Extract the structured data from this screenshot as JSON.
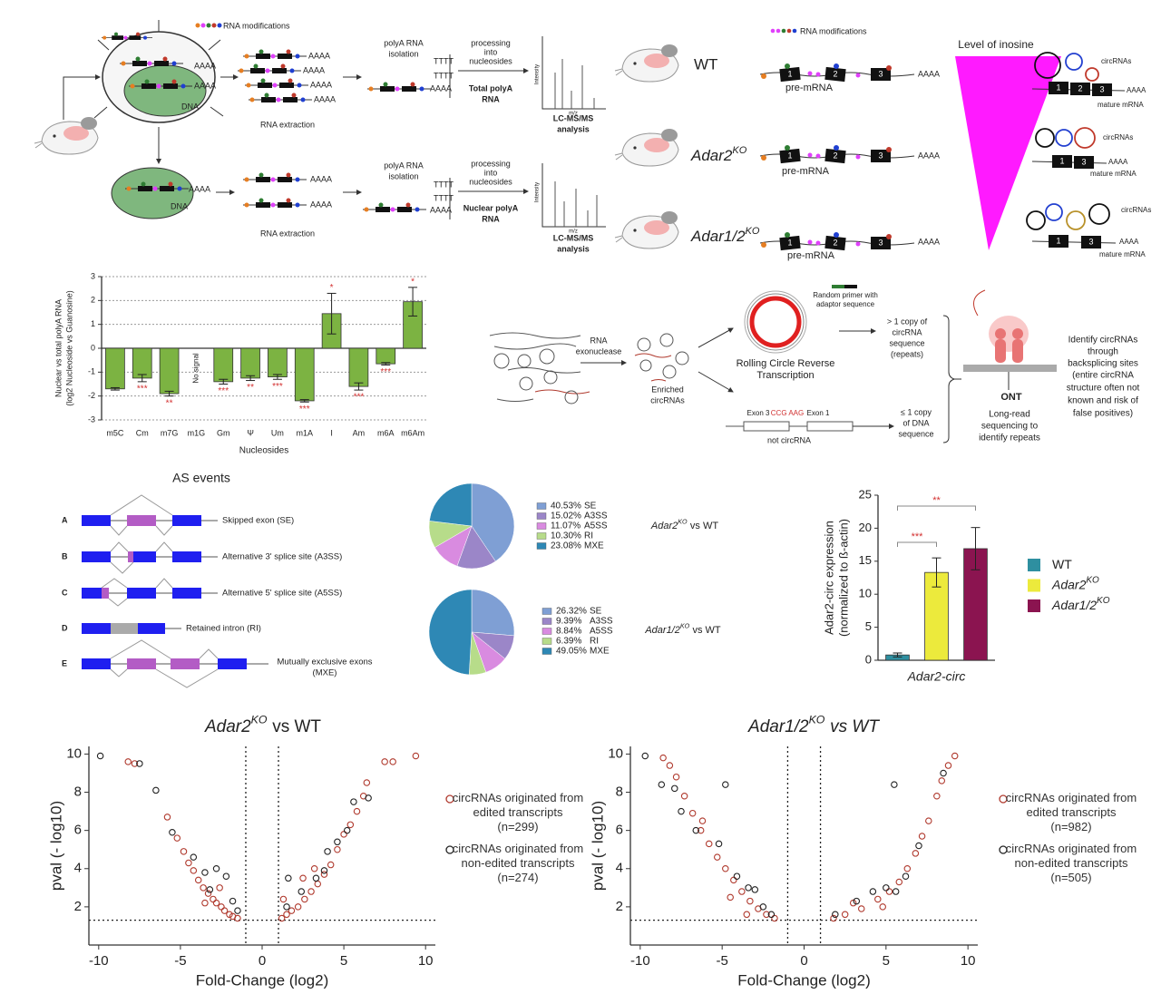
{
  "chart_data": [
    {
      "type": "bar",
      "categories": [
        "m5C",
        "Cm",
        "m7G",
        "m1G",
        "Gm",
        "Ψ",
        "Um",
        "m1A",
        "I",
        "Am",
        "m6A",
        "m6Am"
      ],
      "values": [
        -1.7,
        -1.25,
        -1.9,
        null,
        -1.4,
        -1.25,
        -1.2,
        -2.2,
        1.45,
        -1.6,
        -0.65,
        1.95
      ],
      "errors": [
        0.05,
        0.15,
        0.1,
        null,
        0.1,
        0.1,
        0.1,
        0.05,
        0.85,
        0.15,
        0.05,
        0.6
      ],
      "annotations": [
        null,
        "***",
        "**",
        "No signal",
        "***",
        "**",
        "***",
        "***",
        "*",
        "***",
        "***",
        "*"
      ],
      "annotation_color": "#d32f2f",
      "color": "#7cb342",
      "ylim": [
        -3,
        3
      ],
      "yticks": [
        -3,
        -2,
        -1,
        0,
        1,
        2,
        3
      ],
      "grid": true,
      "xlabel": "Nucleosides",
      "ylabel": [
        "Nuclear vs total polyA RNA",
        "(log2 Nucleoside vs Guanosine)"
      ]
    },
    {
      "type": "pie",
      "title": [
        "Adar2",
        "KO",
        "vs WT"
      ],
      "categories": [
        "SE",
        "A3SS",
        "A5SS",
        "RI",
        "MXE"
      ],
      "values": [
        40.53,
        15.02,
        11.07,
        10.3,
        23.08
      ],
      "value_labels": [
        "40.53%",
        "15.02%",
        "11.07%",
        "10.30%",
        "23.08%"
      ],
      "colors": [
        "#7f9fd4",
        "#9b86c8",
        "#d98be0",
        "#b7dc8a",
        "#2e88b5"
      ]
    },
    {
      "type": "pie",
      "title": [
        "Adar1/2",
        "KO",
        "vs WT"
      ],
      "categories": [
        "SE",
        "A3SS",
        "A5SS",
        "RI",
        "MXE"
      ],
      "values": [
        26.32,
        9.39,
        8.84,
        6.39,
        49.05
      ],
      "value_labels": [
        "26.32%",
        "9.39%",
        "8.84%",
        "6.39%",
        "49.05%"
      ],
      "colors": [
        "#7f9fd4",
        "#9b86c8",
        "#d98be0",
        "#b7dc8a",
        "#2e88b5"
      ]
    },
    {
      "type": "bar",
      "categories": [
        "WT",
        "Adar2",
        "Adar1/2"
      ],
      "category_superscripts": [
        null,
        "KO",
        "KO"
      ],
      "values": [
        0.8,
        13.3,
        16.9
      ],
      "errors": [
        0.3,
        2.2,
        3.2
      ],
      "colors": [
        "#2e8fa0",
        "#ecea3c",
        "#8b1450"
      ],
      "significance": [
        "***",
        "**"
      ],
      "annotation_color": "#d32f2f",
      "ylim": [
        0,
        25
      ],
      "yticks": [
        0,
        5,
        10,
        15,
        20,
        25
      ],
      "grid": false,
      "legend": "right",
      "xlabel": "Adar2-circ",
      "ylabel": [
        "Adar2-circ expression",
        "(normalized to ß-actin)"
      ]
    },
    {
      "type": "scatter",
      "title": [
        "Adar2",
        "KO",
        "vs WT"
      ],
      "xlabel": "Fold-Change (log2)",
      "ylabel": "pval (- log10)",
      "xlim": [
        -10.6,
        10.6
      ],
      "ylim": [
        0,
        10.4
      ],
      "xticks": [
        -10,
        -5,
        0,
        5,
        10
      ],
      "yticks": [
        2,
        4,
        6,
        8,
        10
      ],
      "thresholds": {
        "x": [
          -1,
          1
        ],
        "y": 1.3
      },
      "series": [
        {
          "name": "circRNAs originated from edited transcripts (n=299)",
          "color": "#b03a2e",
          "x": [
            -8.2,
            -7.8,
            -5.8,
            -5.2,
            -4.8,
            -4.5,
            -4.2,
            -3.9,
            -3.6,
            -3.3,
            -3.0,
            -2.8,
            -2.5,
            -2.3,
            -2.0,
            -1.8,
            -1.5,
            -2.6,
            -3.5,
            1.2,
            1.5,
            1.8,
            2.2,
            2.6,
            3.0,
            3.4,
            3.8,
            4.2,
            4.6,
            5.0,
            5.4,
            5.8,
            6.2,
            6.4,
            7.5,
            8.0,
            9.4,
            2.5,
            3.2,
            1.3
          ],
          "values": [
            9.6,
            9.5,
            6.7,
            5.6,
            4.9,
            4.3,
            3.9,
            3.4,
            3.0,
            2.7,
            2.4,
            2.2,
            2.0,
            1.8,
            1.6,
            1.5,
            1.4,
            3.0,
            2.2,
            1.4,
            1.6,
            1.8,
            2.0,
            2.4,
            2.8,
            3.2,
            3.7,
            4.2,
            5.0,
            5.8,
            6.3,
            7.0,
            7.8,
            8.5,
            9.6,
            9.6,
            9.9,
            3.5,
            4.0,
            2.4
          ]
        },
        {
          "name": "circRNAs originated from non-edited transcripts (n=274)",
          "color": "#222222",
          "x": [
            -9.9,
            -7.5,
            -6.5,
            -5.5,
            -4.2,
            -3.5,
            -2.8,
            -2.2,
            -1.8,
            -1.5,
            -3.2,
            1.5,
            2.4,
            3.3,
            3.8,
            4.6,
            5.2,
            5.6,
            6.5,
            4.0,
            1.6
          ],
          "values": [
            9.9,
            9.5,
            8.1,
            5.9,
            4.6,
            3.8,
            4.0,
            3.6,
            2.3,
            1.8,
            2.9,
            2.0,
            2.8,
            3.5,
            3.9,
            5.4,
            6.0,
            7.5,
            7.7,
            4.9,
            3.5
          ]
        }
      ]
    },
    {
      "type": "scatter",
      "title": [
        "Adar1/2",
        "KO",
        "vs WT"
      ],
      "xlabel": "Fold-Change (log2)",
      "ylabel": "pval (- log10)",
      "xlim": [
        -10.6,
        10.6
      ],
      "ylim": [
        0,
        10.4
      ],
      "xticks": [
        -10,
        -5,
        0,
        5,
        10
      ],
      "yticks": [
        2,
        4,
        6,
        8,
        10
      ],
      "thresholds": {
        "x": [
          -1,
          1
        ],
        "y": 1.3
      },
      "series": [
        {
          "name": "circRNAs originated from edited transcripts (n=982)",
          "color": "#b03a2e",
          "x": [
            -8.6,
            -8.2,
            -7.8,
            -7.3,
            -6.8,
            -6.3,
            -5.8,
            -5.3,
            -4.8,
            -4.3,
            -3.8,
            -3.3,
            -2.8,
            -2.3,
            -1.8,
            -4.5,
            -3.5,
            -6.2,
            1.8,
            2.5,
            3.5,
            4.5,
            5.2,
            5.8,
            6.3,
            6.8,
            7.2,
            7.6,
            8.1,
            8.4,
            8.8,
            9.2,
            4.8,
            3.0
          ],
          "values": [
            9.8,
            9.4,
            8.8,
            7.8,
            6.9,
            6.0,
            5.3,
            4.6,
            4.0,
            3.4,
            2.8,
            2.3,
            1.9,
            1.6,
            1.4,
            2.5,
            1.6,
            6.5,
            1.4,
            1.6,
            1.9,
            2.4,
            2.8,
            3.3,
            4.0,
            4.8,
            5.7,
            6.5,
            7.8,
            8.6,
            9.4,
            9.9,
            2.0,
            2.2
          ]
        },
        {
          "name": "circRNAs originated from non-edited transcripts (n=505)",
          "color": "#222222",
          "x": [
            -9.7,
            -8.7,
            -7.9,
            -7.5,
            -6.6,
            -5.2,
            -4.8,
            -4.1,
            -3.4,
            -3.0,
            -2.5,
            -2.0,
            1.9,
            3.2,
            4.2,
            5.0,
            5.5,
            6.2,
            7.0,
            8.5,
            5.6
          ],
          "values": [
            9.9,
            8.4,
            8.2,
            7.0,
            6.0,
            5.3,
            8.4,
            3.6,
            3.0,
            2.9,
            2.0,
            1.6,
            1.6,
            2.3,
            2.8,
            3.0,
            8.4,
            3.6,
            5.2,
            9.0,
            2.8
          ]
        }
      ]
    }
  ],
  "diagram_top_left": {
    "rna_modifications": "RNA modifications",
    "polyA_tail": "AAAA",
    "dna": "DNA",
    "rna_extraction": "RNA extraction",
    "polyA_isolation": [
      "polyA RNA",
      "isolation"
    ],
    "oligo_dT": "TTTT",
    "processing": [
      "processing",
      "into",
      "nucleosides"
    ],
    "total_polyA": [
      "Total polyA",
      "RNA"
    ],
    "nuclear_polyA": [
      "Nuclear polyA",
      "RNA"
    ],
    "intensity": "Intensity",
    "mz": "m/z",
    "lcms": [
      "LC-MS/MS",
      "analysis"
    ]
  },
  "diagram_top_right": {
    "rna_modifications": "RNA modifications",
    "genotypes": [
      [
        "WT"
      ],
      [
        "Adar2",
        "KO"
      ],
      [
        "Adar1/2",
        "KO"
      ]
    ],
    "pre_mrna": "pre-mRNA",
    "exons": [
      "1",
      "2",
      "3"
    ],
    "polyA_tail": "AAAA",
    "inosine": "Level of inosine",
    "circrnas": "circRNAs",
    "mature_mrna": "mature mRNA"
  },
  "diagram_circ": {
    "exonuclease": [
      "RNA",
      "exonuclease"
    ],
    "enriched": [
      "Enriched",
      "circRNAs"
    ],
    "primer": [
      "Random primer with",
      "adaptor sequence"
    ],
    "rcrt": [
      "Rolling Circle Reverse",
      "Transcription"
    ],
    "repeats": [
      "> 1 copy of",
      "circRNA",
      "sequence",
      "(repeats)"
    ],
    "exon3": "Exon 3",
    "junction": "CCG AAG",
    "exon1": "Exon 1",
    "not_circ": "not circRNA",
    "single": [
      "≤ 1 copy",
      "of DNA",
      "sequence"
    ],
    "ont": "ONT",
    "long_read": [
      "Long-read",
      "sequencing to",
      "identify repeats"
    ],
    "identify": [
      "Identify circRNAs",
      "through",
      "backsplicing sites",
      "(entire circRNA",
      "structure often not",
      "known and risk of",
      "false positives)"
    ]
  },
  "as_events": {
    "title": "AS events",
    "events": [
      {
        "letter": "A",
        "label": [
          "Skipped exon (SE)"
        ]
      },
      {
        "letter": "B",
        "label": [
          "Alternative 3' splice site (A3SS)"
        ]
      },
      {
        "letter": "C",
        "label": [
          "Alternative 5' splice site (A5SS)"
        ]
      },
      {
        "letter": "D",
        "label": [
          "Retained intron (RI)"
        ]
      },
      {
        "letter": "E",
        "label": [
          "Mutually exclusive exons",
          "(MXE)"
        ]
      }
    ]
  }
}
